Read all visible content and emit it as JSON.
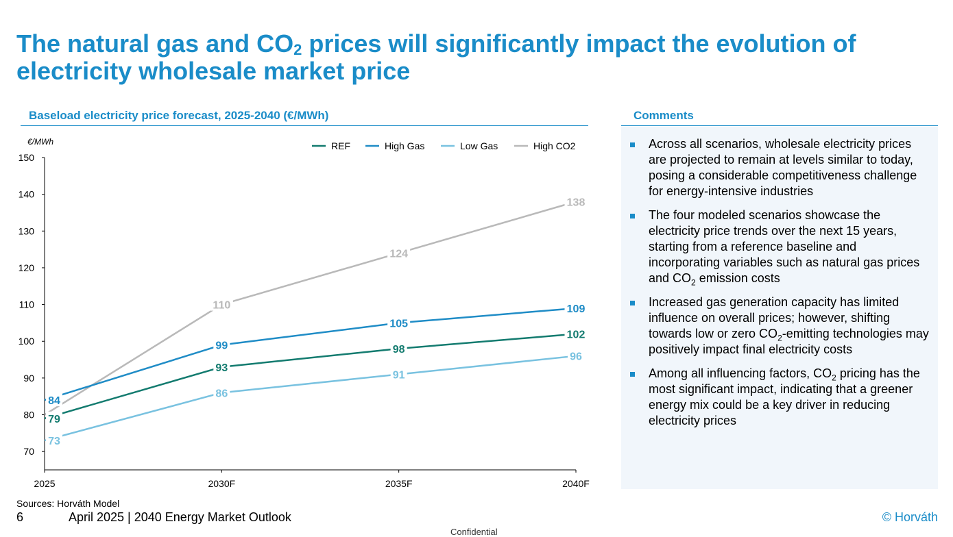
{
  "slide": {
    "title_part1": "The natural gas and CO",
    "title_sub": "2",
    "title_part2": " prices will significantly impact the evolution of electricity wholesale market price",
    "comments_title": "Comments",
    "sources": "Sources: Horváth Model",
    "page_number": "6",
    "footer_text": "April 2025 | 2040 Energy Market Outlook",
    "copyright": "© Horváth",
    "confidential": "Confidential"
  },
  "comments": [
    {
      "parts": [
        {
          "t": "Across all scenarios, wholesale electricity prices are projected to remain at levels similar to today, posing a considerable competitiveness challenge for energy-intensive industries"
        }
      ]
    },
    {
      "parts": [
        {
          "t": "The four modeled scenarios showcase the electricity price trends over the next 15 years, starting from a reference baseline and incorporating variables such as natural gas prices and CO"
        },
        {
          "t": "2",
          "sub": true
        },
        {
          "t": " emission costs"
        }
      ]
    },
    {
      "parts": [
        {
          "t": "Increased gas generation capacity has limited influence on overall prices; however, shifting towards low or zero CO"
        },
        {
          "t": "2",
          "sub": true
        },
        {
          "t": "-emitting technologies may positively impact final electricity costs"
        }
      ]
    },
    {
      "parts": [
        {
          "t": "Among all influencing factors, CO"
        },
        {
          "t": "2",
          "sub": true
        },
        {
          "t": " pricing has the most significant impact, indicating that a greener energy mix could be a key driver in reducing electricity prices"
        }
      ]
    }
  ],
  "chart_data": {
    "type": "line",
    "title": "Baseload electricity price forecast, 2025-2040 (€/MWh)",
    "ylabel": "€/MWh",
    "xlabel": "",
    "categories": [
      "2025",
      "2030F",
      "2035F",
      "2040F"
    ],
    "ylim": [
      65,
      150
    ],
    "yticks": [
      70,
      80,
      90,
      100,
      110,
      120,
      130,
      140,
      150
    ],
    "grid": false,
    "legend_position": "top-right",
    "series": [
      {
        "name": "REF",
        "color": "#137b6f",
        "values": [
          79,
          93,
          98,
          102
        ]
      },
      {
        "name": "High Gas",
        "color": "#1f8cc6",
        "values": [
          84,
          99,
          105,
          109
        ]
      },
      {
        "name": "Low Gas",
        "color": "#79c2e0",
        "values": [
          73,
          86,
          91,
          96
        ]
      },
      {
        "name": "High CO2",
        "color": "#b9b9b9",
        "values": [
          80,
          110,
          124,
          138
        ],
        "labels": [
          "",
          "110",
          "124",
          "138"
        ]
      }
    ]
  }
}
